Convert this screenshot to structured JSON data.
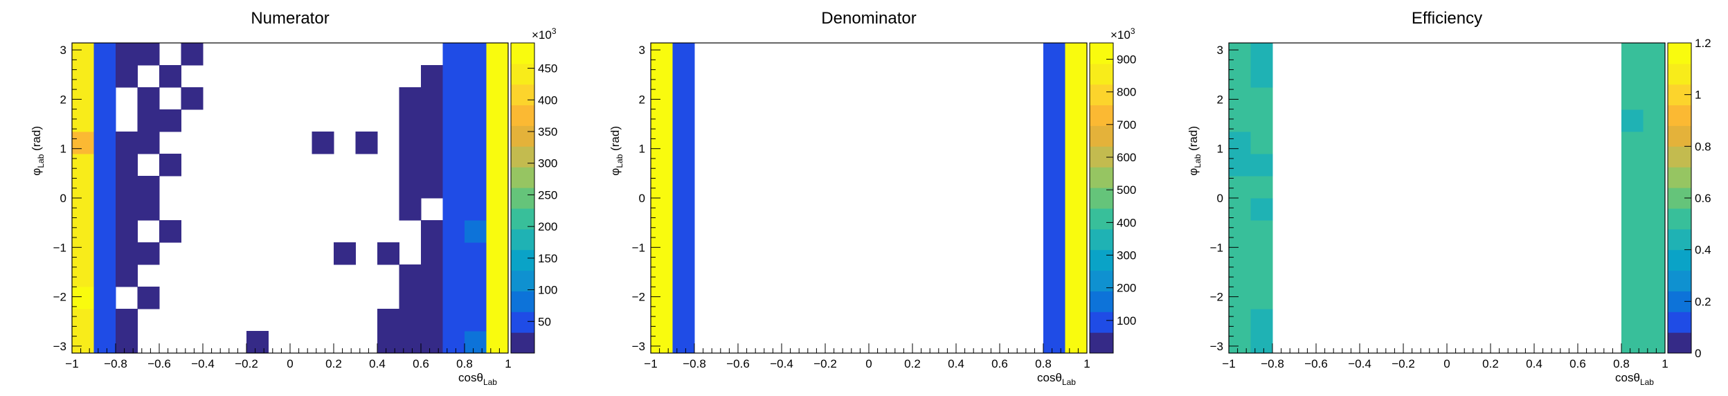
{
  "palette": [
    "#352a87",
    "#1f4ce6",
    "#0d73d9",
    "#0f91d0",
    "#0aa3c7",
    "#1fb2b4",
    "#38bf9a",
    "#65c47a",
    "#96c562",
    "#c3bb4f",
    "#e4b23a",
    "#fbb933",
    "#fcd42c",
    "#f8ec1a",
    "#f9fb0e"
  ],
  "chart_data": [
    {
      "type": "heatmap",
      "title": "Numerator",
      "xlabel": "cosθ",
      "xlabel_sub": "Lab",
      "ylabel": "φ",
      "ylabel_sub": "Lab",
      "ylabel_unit": "(rad)",
      "xlim": [
        -1,
        1
      ],
      "ylim": [
        -3.1416,
        3.1416
      ],
      "x_bins": 20,
      "y_bins": 14,
      "x_ticks": [
        "−1",
        "−0.8",
        "−0.6",
        "−0.4",
        "−0.2",
        "0",
        "0.2",
        "0.4",
        "0.6",
        "0.8",
        "1"
      ],
      "y_ticks": [
        "−3",
        "−2",
        "−1",
        "0",
        "1",
        "2",
        "3"
      ],
      "z_exponent": "×10",
      "z_exponent_power": "3",
      "zlim": [
        0,
        490
      ],
      "z_ticks": [
        "50",
        "100",
        "150",
        "200",
        "250",
        "300",
        "350",
        "400",
        "450"
      ],
      "z_tick_values": [
        50,
        100,
        150,
        200,
        250,
        300,
        350,
        400,
        450
      ],
      "cells": [
        [
          0,
          0,
          440
        ],
        [
          1,
          0,
          40
        ],
        [
          2,
          0,
          20
        ],
        [
          8,
          0,
          12
        ],
        [
          14,
          0,
          15
        ],
        [
          15,
          0,
          15
        ],
        [
          16,
          0,
          18
        ],
        [
          17,
          0,
          35
        ],
        [
          18,
          0,
          80
        ],
        [
          19,
          0,
          470
        ],
        [
          0,
          1,
          450
        ],
        [
          1,
          1,
          40
        ],
        [
          2,
          1,
          20
        ],
        [
          14,
          1,
          15
        ],
        [
          15,
          1,
          15
        ],
        [
          16,
          1,
          18
        ],
        [
          17,
          1,
          38
        ],
        [
          18,
          1,
          60
        ],
        [
          19,
          1,
          480
        ],
        [
          0,
          2,
          460
        ],
        [
          1,
          2,
          60
        ],
        [
          3,
          2,
          12
        ],
        [
          15,
          2,
          15
        ],
        [
          16,
          2,
          18
        ],
        [
          17,
          2,
          38
        ],
        [
          18,
          2,
          60
        ],
        [
          19,
          2,
          480
        ],
        [
          0,
          3,
          445
        ],
        [
          1,
          3,
          40
        ],
        [
          2,
          3,
          20
        ],
        [
          15,
          3,
          15
        ],
        [
          16,
          3,
          18
        ],
        [
          17,
          3,
          40
        ],
        [
          18,
          3,
          60
        ],
        [
          19,
          3,
          480
        ],
        [
          0,
          4,
          440
        ],
        [
          1,
          4,
          40
        ],
        [
          2,
          4,
          20
        ],
        [
          3,
          4,
          12
        ],
        [
          12,
          4,
          12
        ],
        [
          14,
          4,
          12
        ],
        [
          16,
          4,
          18
        ],
        [
          17,
          4,
          42
        ],
        [
          18,
          4,
          55
        ],
        [
          19,
          4,
          482
        ],
        [
          0,
          5,
          440
        ],
        [
          1,
          5,
          40
        ],
        [
          2,
          5,
          20
        ],
        [
          4,
          5,
          12
        ],
        [
          16,
          5,
          18
        ],
        [
          17,
          5,
          45
        ],
        [
          18,
          5,
          75
        ],
        [
          19,
          5,
          480
        ],
        [
          0,
          6,
          445
        ],
        [
          1,
          6,
          40
        ],
        [
          2,
          6,
          20
        ],
        [
          3,
          6,
          12
        ],
        [
          15,
          6,
          12
        ],
        [
          17,
          6,
          45
        ],
        [
          18,
          6,
          65
        ],
        [
          19,
          6,
          480
        ],
        [
          0,
          7,
          450
        ],
        [
          1,
          7,
          40
        ],
        [
          2,
          7,
          20
        ],
        [
          3,
          7,
          12
        ],
        [
          15,
          7,
          12
        ],
        [
          16,
          7,
          15
        ],
        [
          17,
          7,
          40
        ],
        [
          18,
          7,
          60
        ],
        [
          19,
          7,
          480
        ],
        [
          0,
          8,
          440
        ],
        [
          1,
          8,
          40
        ],
        [
          2,
          8,
          20
        ],
        [
          4,
          8,
          12
        ],
        [
          15,
          8,
          15
        ],
        [
          16,
          8,
          15
        ],
        [
          17,
          8,
          40
        ],
        [
          18,
          8,
          60
        ],
        [
          19,
          8,
          480
        ],
        [
          0,
          9,
          380
        ],
        [
          1,
          9,
          40
        ],
        [
          2,
          9,
          20
        ],
        [
          3,
          9,
          12
        ],
        [
          11,
          9,
          12
        ],
        [
          13,
          9,
          12
        ],
        [
          15,
          9,
          15
        ],
        [
          16,
          9,
          15
        ],
        [
          17,
          9,
          40
        ],
        [
          18,
          9,
          60
        ],
        [
          19,
          9,
          482
        ],
        [
          0,
          10,
          440
        ],
        [
          1,
          10,
          40
        ],
        [
          3,
          10,
          15
        ],
        [
          4,
          10,
          12
        ],
        [
          15,
          10,
          15
        ],
        [
          16,
          10,
          15
        ],
        [
          17,
          10,
          40
        ],
        [
          18,
          10,
          55
        ],
        [
          19,
          10,
          478
        ],
        [
          0,
          11,
          455
        ],
        [
          1,
          11,
          50
        ],
        [
          3,
          11,
          12
        ],
        [
          5,
          11,
          12
        ],
        [
          15,
          11,
          15
        ],
        [
          16,
          11,
          15
        ],
        [
          17,
          11,
          40
        ],
        [
          18,
          11,
          55
        ],
        [
          19,
          11,
          478
        ],
        [
          0,
          12,
          450
        ],
        [
          1,
          12,
          40
        ],
        [
          2,
          12,
          20
        ],
        [
          4,
          12,
          12
        ],
        [
          16,
          12,
          15
        ],
        [
          17,
          12,
          38
        ],
        [
          18,
          12,
          60
        ],
        [
          19,
          12,
          480
        ],
        [
          0,
          13,
          445
        ],
        [
          1,
          13,
          40
        ],
        [
          2,
          13,
          20
        ],
        [
          3,
          13,
          12
        ],
        [
          5,
          13,
          12
        ],
        [
          17,
          13,
          38
        ],
        [
          18,
          13,
          60
        ],
        [
          19,
          13,
          478
        ]
      ]
    },
    {
      "type": "heatmap",
      "title": "Denominator",
      "xlabel": "cosθ",
      "xlabel_sub": "Lab",
      "ylabel": "φ",
      "ylabel_sub": "Lab",
      "ylabel_unit": "(rad)",
      "xlim": [
        -1,
        1
      ],
      "ylim": [
        -3.1416,
        3.1416
      ],
      "x_bins": 20,
      "y_bins": 14,
      "x_ticks": [
        "−1",
        "−0.8",
        "−0.6",
        "−0.4",
        "−0.2",
        "0",
        "0.2",
        "0.4",
        "0.6",
        "0.8",
        "1"
      ],
      "y_ticks": [
        "−3",
        "−2",
        "−1",
        "0",
        "1",
        "2",
        "3"
      ],
      "z_exponent": "×10",
      "z_exponent_power": "3",
      "zlim": [
        0,
        950
      ],
      "z_ticks": [
        "100",
        "200",
        "300",
        "400",
        "500",
        "600",
        "700",
        "800",
        "900"
      ],
      "z_tick_values": [
        100,
        200,
        300,
        400,
        500,
        600,
        700,
        800,
        900
      ],
      "cells": [
        [
          0,
          0,
          920
        ],
        [
          1,
          0,
          100
        ],
        [
          18,
          0,
          95
        ],
        [
          19,
          0,
          925
        ],
        [
          0,
          1,
          920
        ],
        [
          1,
          1,
          100
        ],
        [
          18,
          1,
          95
        ],
        [
          19,
          1,
          925
        ],
        [
          0,
          2,
          920
        ],
        [
          1,
          2,
          100
        ],
        [
          18,
          2,
          110
        ],
        [
          19,
          2,
          925
        ],
        [
          0,
          3,
          920
        ],
        [
          1,
          3,
          100
        ],
        [
          18,
          3,
          95
        ],
        [
          19,
          3,
          925
        ],
        [
          0,
          4,
          920
        ],
        [
          1,
          4,
          100
        ],
        [
          18,
          4,
          95
        ],
        [
          19,
          4,
          925
        ],
        [
          0,
          5,
          920
        ],
        [
          1,
          5,
          100
        ],
        [
          18,
          5,
          95
        ],
        [
          19,
          5,
          925
        ],
        [
          0,
          6,
          920
        ],
        [
          1,
          6,
          100
        ],
        [
          18,
          6,
          95
        ],
        [
          19,
          6,
          925
        ],
        [
          0,
          7,
          920
        ],
        [
          1,
          7,
          100
        ],
        [
          18,
          7,
          95
        ],
        [
          19,
          7,
          925
        ],
        [
          0,
          8,
          920
        ],
        [
          1,
          8,
          100
        ],
        [
          18,
          8,
          95
        ],
        [
          19,
          8,
          925
        ],
        [
          0,
          9,
          920
        ],
        [
          1,
          9,
          100
        ],
        [
          18,
          9,
          95
        ],
        [
          19,
          9,
          925
        ],
        [
          0,
          10,
          920
        ],
        [
          1,
          10,
          100
        ],
        [
          18,
          10,
          95
        ],
        [
          19,
          10,
          925
        ],
        [
          0,
          11,
          920
        ],
        [
          1,
          11,
          100
        ],
        [
          18,
          11,
          95
        ],
        [
          19,
          11,
          925
        ],
        [
          0,
          12,
          920
        ],
        [
          1,
          12,
          100
        ],
        [
          18,
          12,
          95
        ],
        [
          19,
          12,
          925
        ],
        [
          0,
          13,
          920
        ],
        [
          1,
          13,
          100
        ],
        [
          18,
          13,
          95
        ],
        [
          19,
          13,
          925
        ]
      ]
    },
    {
      "type": "heatmap",
      "title": "Efficiency",
      "xlabel": "cosθ",
      "xlabel_sub": "Lab",
      "ylabel": "φ",
      "ylabel_sub": "Lab",
      "ylabel_unit": "(rad)",
      "xlim": [
        -1,
        1
      ],
      "ylim": [
        -3.1416,
        3.1416
      ],
      "x_bins": 20,
      "y_bins": 14,
      "x_ticks": [
        "−1",
        "−0.8",
        "−0.6",
        "−0.4",
        "−0.2",
        "0",
        "0.2",
        "0.4",
        "0.6",
        "0.8",
        "1"
      ],
      "y_ticks": [
        "−3",
        "−2",
        "−1",
        "0",
        "1",
        "2",
        "3"
      ],
      "z_exponent": "",
      "z_exponent_power": "",
      "zlim": [
        0,
        1.2
      ],
      "z_ticks": [
        "0",
        "0.2",
        "0.4",
        "0.6",
        "0.8",
        "1",
        "1.2"
      ],
      "z_tick_values": [
        0,
        0.2,
        0.4,
        0.6,
        0.8,
        1,
        1.2
      ],
      "cells": [
        [
          0,
          0,
          0.48
        ],
        [
          1,
          0,
          0.46
        ],
        [
          18,
          0,
          0.48
        ],
        [
          19,
          0,
          0.52
        ],
        [
          0,
          1,
          0.49
        ],
        [
          1,
          1,
          0.47
        ],
        [
          18,
          1,
          0.55
        ],
        [
          19,
          1,
          0.52
        ],
        [
          0,
          2,
          0.5
        ],
        [
          1,
          2,
          0.48
        ],
        [
          18,
          2,
          0.49
        ],
        [
          19,
          2,
          0.52
        ],
        [
          0,
          3,
          0.48
        ],
        [
          1,
          3,
          0.5
        ],
        [
          18,
          3,
          0.51
        ],
        [
          19,
          3,
          0.52
        ],
        [
          0,
          4,
          0.48
        ],
        [
          1,
          4,
          0.52
        ],
        [
          18,
          4,
          0.49
        ],
        [
          19,
          4,
          0.52
        ],
        [
          0,
          5,
          0.48
        ],
        [
          1,
          5,
          0.5
        ],
        [
          18,
          5,
          0.5
        ],
        [
          19,
          5,
          0.52
        ],
        [
          0,
          6,
          0.48
        ],
        [
          1,
          6,
          0.47
        ],
        [
          18,
          6,
          0.49
        ],
        [
          19,
          6,
          0.52
        ],
        [
          0,
          7,
          0.48
        ],
        [
          1,
          7,
          0.52
        ],
        [
          18,
          7,
          0.48
        ],
        [
          19,
          7,
          0.52
        ],
        [
          0,
          8,
          0.46
        ],
        [
          1,
          8,
          0.47
        ],
        [
          18,
          8,
          0.49
        ],
        [
          19,
          8,
          0.52
        ],
        [
          0,
          9,
          0.41
        ],
        [
          1,
          9,
          0.48
        ],
        [
          18,
          9,
          0.48
        ],
        [
          19,
          9,
          0.52
        ],
        [
          0,
          10,
          0.49
        ],
        [
          1,
          10,
          0.48
        ],
        [
          18,
          10,
          0.41
        ],
        [
          19,
          10,
          0.52
        ],
        [
          0,
          11,
          0.48
        ],
        [
          1,
          11,
          0.53
        ],
        [
          18,
          11,
          0.48
        ],
        [
          19,
          11,
          0.52
        ],
        [
          0,
          12,
          0.48
        ],
        [
          1,
          12,
          0.43
        ],
        [
          18,
          12,
          0.52
        ],
        [
          19,
          12,
          0.52
        ],
        [
          0,
          13,
          0.48
        ],
        [
          1,
          13,
          0.46
        ],
        [
          18,
          13,
          0.48
        ],
        [
          19,
          13,
          0.52
        ]
      ]
    }
  ]
}
